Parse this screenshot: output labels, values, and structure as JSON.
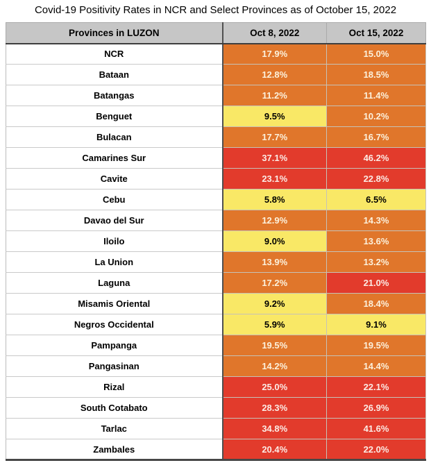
{
  "title": "Covid-19 Positivity Rates in NCR and Select Provinces as of October 15, 2022",
  "colors": {
    "orange": "#e0762b",
    "red": "#e23b2c",
    "yellow": "#f9e866",
    "text_on_orange": "#fcf1dc",
    "text_on_red": "#fcebe5",
    "text_on_yellow": "#000000",
    "header_bg": "#c6c6c6"
  },
  "table": {
    "headers": [
      "Provinces in LUZON",
      "Oct 8, 2022",
      "Oct 15, 2022"
    ],
    "rows": [
      {
        "province": "NCR",
        "oct8": "17.9%",
        "oct8_level": "orange",
        "oct15": "15.0%",
        "oct15_level": "orange"
      },
      {
        "province": "Bataan",
        "oct8": "12.8%",
        "oct8_level": "orange",
        "oct15": "18.5%",
        "oct15_level": "orange"
      },
      {
        "province": "Batangas",
        "oct8": "11.2%",
        "oct8_level": "orange",
        "oct15": "11.4%",
        "oct15_level": "orange"
      },
      {
        "province": "Benguet",
        "oct8": "9.5%",
        "oct8_level": "yellow",
        "oct15": "10.2%",
        "oct15_level": "orange"
      },
      {
        "province": "Bulacan",
        "oct8": "17.7%",
        "oct8_level": "orange",
        "oct15": "16.7%",
        "oct15_level": "orange"
      },
      {
        "province": "Camarines Sur",
        "oct8": "37.1%",
        "oct8_level": "red",
        "oct15": "46.2%",
        "oct15_level": "red"
      },
      {
        "province": "Cavite",
        "oct8": "23.1%",
        "oct8_level": "red",
        "oct15": "22.8%",
        "oct15_level": "red"
      },
      {
        "province": "Cebu",
        "oct8": "5.8%",
        "oct8_level": "yellow",
        "oct15": "6.5%",
        "oct15_level": "yellow"
      },
      {
        "province": "Davao del Sur",
        "oct8": "12.9%",
        "oct8_level": "orange",
        "oct15": "14.3%",
        "oct15_level": "orange"
      },
      {
        "province": "Iloilo",
        "oct8": "9.0%",
        "oct8_level": "yellow",
        "oct15": "13.6%",
        "oct15_level": "orange"
      },
      {
        "province": "La Union",
        "oct8": "13.9%",
        "oct8_level": "orange",
        "oct15": "13.2%",
        "oct15_level": "orange"
      },
      {
        "province": "Laguna",
        "oct8": "17.2%",
        "oct8_level": "orange",
        "oct15": "21.0%",
        "oct15_level": "red"
      },
      {
        "province": "Misamis Oriental",
        "oct8": "9.2%",
        "oct8_level": "yellow",
        "oct15": "18.4%",
        "oct15_level": "orange"
      },
      {
        "province": "Negros Occidental",
        "oct8": "5.9%",
        "oct8_level": "yellow",
        "oct15": "9.1%",
        "oct15_level": "yellow"
      },
      {
        "province": "Pampanga",
        "oct8": "19.5%",
        "oct8_level": "orange",
        "oct15": "19.5%",
        "oct15_level": "orange"
      },
      {
        "province": "Pangasinan",
        "oct8": "14.2%",
        "oct8_level": "orange",
        "oct15": "14.4%",
        "oct15_level": "orange"
      },
      {
        "province": "Rizal",
        "oct8": "25.0%",
        "oct8_level": "red",
        "oct15": "22.1%",
        "oct15_level": "red"
      },
      {
        "province": "South Cotabato",
        "oct8": "28.3%",
        "oct8_level": "red",
        "oct15": "26.9%",
        "oct15_level": "red"
      },
      {
        "province": "Tarlac",
        "oct8": "34.8%",
        "oct8_level": "red",
        "oct15": "41.6%",
        "oct15_level": "red"
      },
      {
        "province": "Zambales",
        "oct8": "20.4%",
        "oct8_level": "red",
        "oct15": "22.0%",
        "oct15_level": "red"
      }
    ]
  },
  "chart_data": {
    "type": "table",
    "title": "Covid-19 Positivity Rates in NCR and Select Provinces as of October 15, 2022",
    "categories": [
      "NCR",
      "Bataan",
      "Batangas",
      "Benguet",
      "Bulacan",
      "Camarines Sur",
      "Cavite",
      "Cebu",
      "Davao del Sur",
      "Iloilo",
      "La Union",
      "Laguna",
      "Misamis Oriental",
      "Negros Occidental",
      "Pampanga",
      "Pangasinan",
      "Rizal",
      "South Cotabato",
      "Tarlac",
      "Zambales"
    ],
    "series": [
      {
        "name": "Oct 8, 2022",
        "values": [
          17.9,
          12.8,
          11.2,
          9.5,
          17.7,
          37.1,
          23.1,
          5.8,
          12.9,
          9.0,
          13.9,
          17.2,
          9.2,
          5.9,
          19.5,
          14.2,
          25.0,
          28.3,
          34.8,
          20.4
        ],
        "cell_levels": [
          "orange",
          "orange",
          "orange",
          "yellow",
          "orange",
          "red",
          "red",
          "yellow",
          "orange",
          "yellow",
          "orange",
          "orange",
          "yellow",
          "yellow",
          "orange",
          "orange",
          "red",
          "red",
          "red",
          "red"
        ]
      },
      {
        "name": "Oct 15, 2022",
        "values": [
          15.0,
          18.5,
          11.4,
          10.2,
          16.7,
          46.2,
          22.8,
          6.5,
          14.3,
          13.6,
          13.2,
          21.0,
          18.4,
          9.1,
          19.5,
          14.4,
          22.1,
          26.9,
          41.6,
          22.0
        ],
        "cell_levels": [
          "orange",
          "orange",
          "orange",
          "orange",
          "orange",
          "red",
          "red",
          "yellow",
          "orange",
          "orange",
          "orange",
          "red",
          "orange",
          "yellow",
          "orange",
          "orange",
          "red",
          "red",
          "red",
          "red"
        ]
      }
    ],
    "value_unit": "%",
    "color_legend": {
      "yellow": "below ~10%",
      "orange": "~10-20%",
      "red": "~20%+"
    }
  }
}
